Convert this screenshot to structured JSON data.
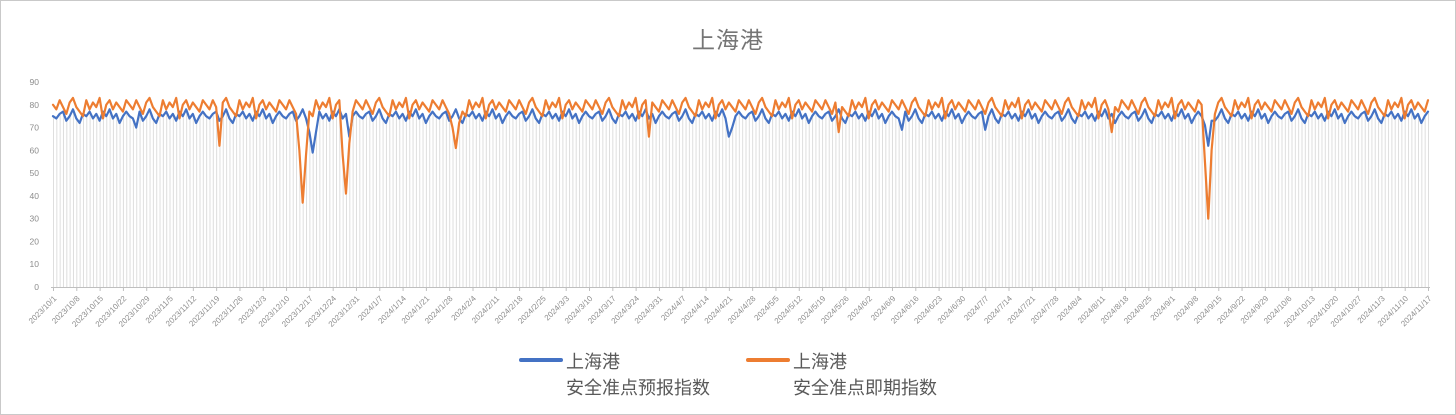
{
  "chart_data": {
    "type": "line",
    "title": "上海港",
    "x_start_date": "2023/10/1",
    "x_end_date": "2024/11/17",
    "n_points": 414,
    "x_tick_interval_days": 7,
    "x_tick_labels": [
      "2023/10/1",
      "2023/10/8",
      "2023/10/15",
      "2023/10/22",
      "2023/10/29",
      "2023/11/5",
      "2023/11/12",
      "2023/11/19",
      "2023/11/26",
      "2023/12/3",
      "2023/12/10",
      "2023/12/17",
      "2023/12/24",
      "2023/12/31",
      "2024/1/7",
      "2024/1/14",
      "2024/1/21",
      "2024/1/28",
      "2024/2/4",
      "2024/2/11",
      "2024/2/18",
      "2024/2/25",
      "2024/3/3",
      "2024/3/10",
      "2024/3/17",
      "2024/3/24",
      "2024/3/31",
      "2024/4/7",
      "2024/4/14",
      "2024/4/21",
      "2024/4/28",
      "2024/5/5",
      "2024/5/12",
      "2024/5/19",
      "2024/5/26",
      "2024/6/2",
      "2024/6/9",
      "2024/6/16",
      "2024/6/23",
      "2024/6/30",
      "2024/7/7",
      "2024/7/14",
      "2024/7/21",
      "2024/7/28",
      "2024/8/4",
      "2024/8/11",
      "2024/8/18",
      "2024/8/25",
      "2024/9/1",
      "2024/9/8",
      "2024/9/15",
      "2024/9/22",
      "2024/9/29",
      "2024/10/6",
      "2024/10/13",
      "2024/10/20",
      "2024/10/27",
      "2024/11/3",
      "2024/11/10",
      "2024/11/17"
    ],
    "ylim": [
      0,
      90
    ],
    "y_ticks": [
      0,
      10,
      20,
      30,
      40,
      50,
      60,
      70,
      80,
      90
    ],
    "gridlines": "vertical drop line at every daily point, no horizontal gridlines",
    "legend_position": "bottom-center",
    "series": [
      {
        "name_line1": "上海港",
        "name_line2": "安全准点预报指数",
        "color": "#4472C4",
        "base_pattern": [
          75,
          74,
          76,
          77,
          73,
          75,
          78,
          74,
          72,
          76,
          75,
          77,
          74,
          76,
          73,
          77,
          75,
          78,
          74,
          76,
          72,
          75,
          77
        ],
        "overrides": {
          "25": 70,
          "77": 68,
          "78": 59,
          "79": 68,
          "89": 66,
          "203": 66,
          "204": 70,
          "255": 69,
          "280": 69,
          "346": 71,
          "347": 62,
          "348": 73
        }
      },
      {
        "name_line1": "上海港",
        "name_line2": "安全准点即期指数",
        "color": "#ED7D31",
        "base_pattern": [
          80,
          78,
          82,
          79,
          76,
          81,
          83,
          79,
          77,
          75,
          82,
          78,
          81,
          79,
          83,
          74,
          80,
          82,
          78,
          81,
          79,
          77,
          82
        ],
        "overrides": {
          "50": 62,
          "74": 60,
          "75": 37,
          "76": 58,
          "87": 58,
          "88": 41,
          "89": 63,
          "120": 70,
          "121": 61,
          "122": 72,
          "179": 66,
          "236": 68,
          "318": 68,
          "346": 55,
          "347": 30,
          "348": 60
        }
      }
    ],
    "colors": {
      "title_text": "#757575",
      "axis_label_text": "#8C8C8C",
      "legend_text": "#595959",
      "drop_line": "#DEDEDE",
      "axis_line": "#BFBFBF",
      "frame_border": "#C9C9C9"
    }
  }
}
